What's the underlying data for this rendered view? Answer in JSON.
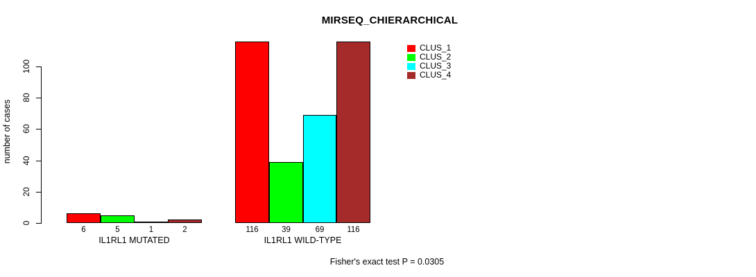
{
  "chart_data": {
    "type": "bar",
    "title": "MIRSEQ_CHIERARCHICAL",
    "ylabel": "number of cases",
    "xlabel": "",
    "categories": [
      "IL1RL1 MUTATED",
      "IL1RL1 WILD-TYPE"
    ],
    "series": [
      {
        "name": "CLUS_1",
        "color": "#ff0000",
        "values": [
          6,
          116
        ]
      },
      {
        "name": "CLUS_2",
        "color": "#00ff00",
        "values": [
          5,
          39
        ]
      },
      {
        "name": "CLUS_3",
        "color": "#00ffff",
        "values": [
          1,
          69
        ]
      },
      {
        "name": "CLUS_4",
        "color": "#a52a2a",
        "values": [
          2,
          116
        ]
      }
    ],
    "y_ticks": [
      0,
      20,
      40,
      60,
      80,
      100
    ],
    "ylim": [
      0,
      116
    ],
    "grid": false,
    "legend_position": "top-right",
    "annotation": "Fisher's exact test P = 0.0305"
  },
  "colors": {
    "background": "#ffffff",
    "axis": "#000000",
    "bar_border": "#000000"
  }
}
